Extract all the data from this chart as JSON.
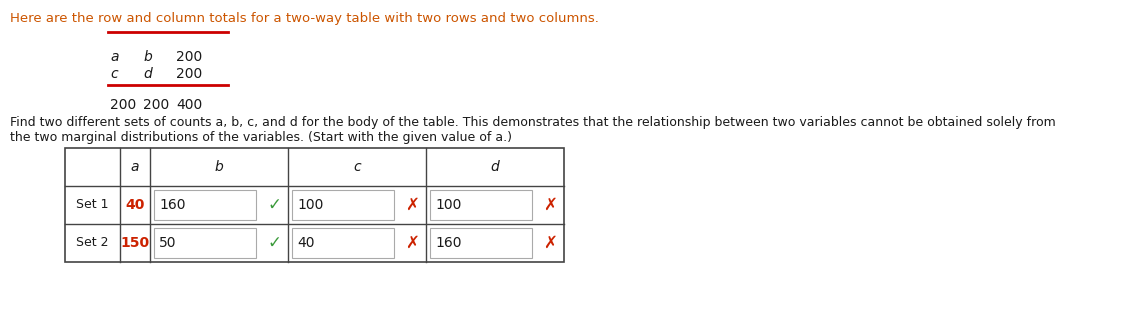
{
  "bg_color": "#ffffff",
  "dark_red": "#8B0000",
  "orange_brown": "#cc5500",
  "text_dark": "#1a1a1a",
  "red_line_color": "#cc0000",
  "header_text": "Here are the row and column totals for a two-way table with two rows and two columns.",
  "table_row1": [
    "a",
    "b",
    "200"
  ],
  "table_row2": [
    "c",
    "d",
    "200"
  ],
  "table_totals": [
    "200",
    "200",
    "400"
  ],
  "find_line1": "Find two different sets of counts a, b, c, and d for the body of the table. This demonstrates that the relationship between two variables cannot be obtained solely from",
  "find_line2": "the two marginal distributions of the variables. (Start with the given value of a.)",
  "grid_col_headers": [
    "",
    "a",
    "b",
    "",
    "c",
    "",
    "d",
    ""
  ],
  "grid_row1_label": "Set 1",
  "grid_row1_a": "40",
  "grid_row1_b": "160",
  "grid_row1_c": "100",
  "grid_row1_d": "100",
  "grid_row2_label": "Set 2",
  "grid_row2_a": "150",
  "grid_row2_b": "50",
  "grid_row2_c": "40",
  "grid_row2_d": "160",
  "check_color": "#3a9a3a",
  "x_color": "#cc2200",
  "grid_border_color": "#444444",
  "input_box_color": "#dddddd",
  "red_num_color": "#cc2200"
}
